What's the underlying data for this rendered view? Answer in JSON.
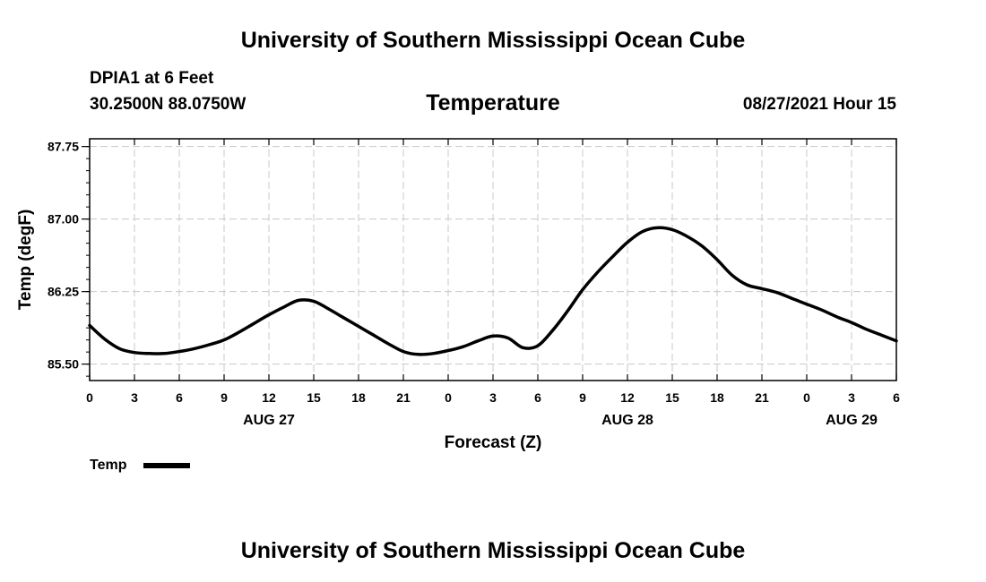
{
  "header": {
    "title": "University of Southern Mississippi Ocean Cube",
    "station": "DPIA1 at 6 Feet",
    "coords": "30.2500N  88.0750W",
    "chart_title": "Temperature",
    "datetime": "08/27/2021 Hour 15"
  },
  "footer": {
    "title": "University of Southern Mississippi Ocean Cube"
  },
  "colors": {
    "line": "#000000",
    "grid": "#c8c8c8",
    "background": "#ffffff"
  },
  "chart_data": {
    "type": "line",
    "title": "Temperature",
    "xlabel": "Forecast (Z)",
    "ylabel": "Temp (degF)",
    "xlim": [
      0,
      54
    ],
    "ylim": [
      85.33,
      87.83
    ],
    "x_ticks": [
      0,
      3,
      6,
      9,
      12,
      15,
      18,
      21,
      24,
      27,
      30,
      33,
      36,
      39,
      42,
      45,
      48,
      51,
      54
    ],
    "x_tick_labels": [
      "0",
      "3",
      "6",
      "9",
      "12",
      "15",
      "18",
      "21",
      "0",
      "3",
      "6",
      "9",
      "12",
      "15",
      "18",
      "21",
      "0",
      "3",
      "6"
    ],
    "date_labels": [
      {
        "x": 12,
        "label": "AUG 27"
      },
      {
        "x": 36,
        "label": "AUG 28"
      },
      {
        "x": 51,
        "label": "AUG 29"
      }
    ],
    "y_ticks": [
      85.5,
      86.25,
      87.0,
      87.75
    ],
    "y_tick_labels": [
      "85.50",
      "86.25",
      "87.00",
      "87.75"
    ],
    "grid": true,
    "legend": {
      "placement": "bottom-left",
      "entries": [
        "Temp"
      ]
    },
    "series": [
      {
        "name": "Temp",
        "x": [
          0,
          1,
          2,
          3,
          4,
          5,
          6,
          7,
          8,
          9,
          10,
          11,
          12,
          13,
          14,
          15,
          16,
          17,
          18,
          19,
          20,
          21,
          22,
          23,
          24,
          25,
          26,
          27,
          28,
          29,
          30,
          31,
          32,
          33,
          34,
          35,
          36,
          37,
          38,
          39,
          40,
          41,
          42,
          43,
          44,
          45,
          46,
          47,
          48,
          49,
          50,
          51,
          52,
          53,
          54
        ],
        "y": [
          85.9,
          85.76,
          85.66,
          85.62,
          85.61,
          85.61,
          85.63,
          85.66,
          85.7,
          85.75,
          85.83,
          85.92,
          86.01,
          86.09,
          86.16,
          86.15,
          86.07,
          85.98,
          85.89,
          85.8,
          85.71,
          85.63,
          85.6,
          85.61,
          85.64,
          85.68,
          85.74,
          85.79,
          85.77,
          85.67,
          85.69,
          85.85,
          86.05,
          86.27,
          86.45,
          86.61,
          86.76,
          86.87,
          86.91,
          86.89,
          86.82,
          86.72,
          86.58,
          86.42,
          86.32,
          86.28,
          86.24,
          86.18,
          86.12,
          86.06,
          85.99,
          85.93,
          85.86,
          85.8,
          85.74
        ]
      }
    ]
  }
}
